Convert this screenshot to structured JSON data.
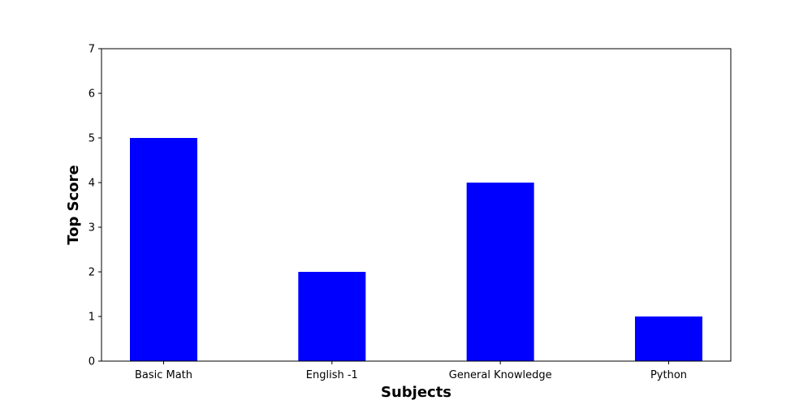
{
  "chart_data": {
    "type": "bar",
    "categories": [
      "Basic Math",
      "English -1",
      "General Knowledge",
      "Python"
    ],
    "values": [
      5,
      2,
      4,
      1
    ],
    "title": "",
    "xlabel": "Subjects",
    "ylabel": "Top Score",
    "ylim": [
      0,
      7
    ],
    "yticks": [
      0,
      1,
      2,
      3,
      4,
      5,
      6,
      7
    ],
    "grid": false,
    "bar_color": "#0000ff"
  }
}
